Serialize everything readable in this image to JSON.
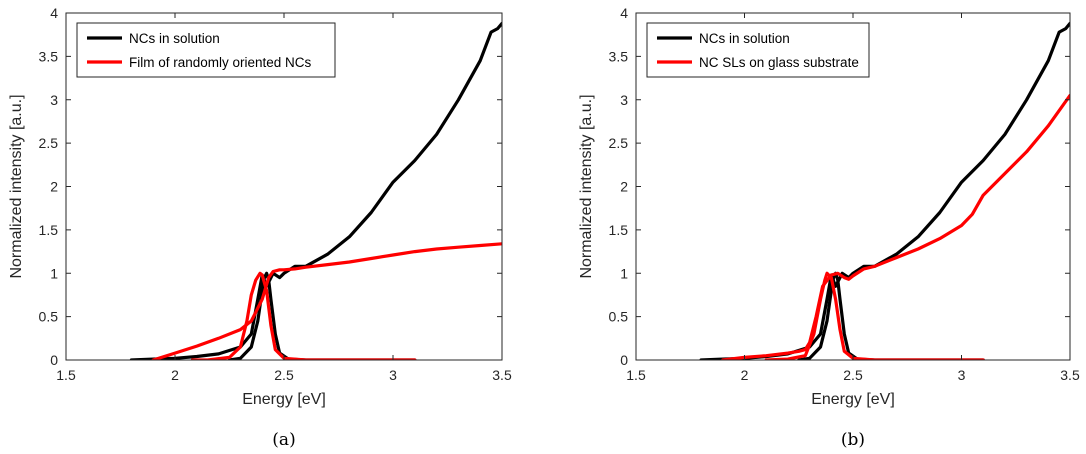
{
  "chart_data": [
    {
      "type": "line",
      "caption": "(a)",
      "xlabel": "Energy [eV]",
      "ylabel": "Normalized intensity [a.u.]",
      "xlim": [
        1.5,
        3.5
      ],
      "ylim": [
        0,
        4
      ],
      "xticks": [
        "1.5",
        "2",
        "2.5",
        "3",
        "3.5"
      ],
      "yticks": [
        "0",
        "0.5",
        "1",
        "1.5",
        "2",
        "2.5",
        "3",
        "3.5",
        "4"
      ],
      "grid": false,
      "legend_position": "top-left",
      "series": [
        {
          "name": "NCs in solution",
          "color": "#000000",
          "kind": "absorption",
          "x": [
            1.8,
            1.9,
            2.0,
            2.1,
            2.2,
            2.3,
            2.35,
            2.38,
            2.4,
            2.42,
            2.45,
            2.48,
            2.5,
            2.55,
            2.6,
            2.7,
            2.8,
            2.9,
            3.0,
            3.1,
            3.2,
            3.3,
            3.4,
            3.45,
            3.48,
            3.5
          ],
          "y": [
            0.0,
            0.01,
            0.02,
            0.04,
            0.07,
            0.15,
            0.3,
            0.7,
            0.98,
            0.85,
            1.0,
            0.95,
            1.0,
            1.08,
            1.08,
            1.22,
            1.42,
            1.7,
            2.05,
            2.3,
            2.6,
            3.0,
            3.45,
            3.78,
            3.82,
            3.88
          ]
        },
        {
          "name": "",
          "color": "#000000",
          "kind": "emission",
          "x": [
            2.25,
            2.3,
            2.35,
            2.38,
            2.4,
            2.41,
            2.42,
            2.43,
            2.44,
            2.46,
            2.48,
            2.52,
            2.6,
            2.8,
            3.0,
            3.1
          ],
          "y": [
            0.0,
            0.02,
            0.15,
            0.45,
            0.8,
            0.95,
            1.0,
            0.92,
            0.7,
            0.3,
            0.08,
            0.01,
            0.0,
            0.0,
            0.0,
            0.0
          ]
        },
        {
          "name": "Film of randomly oriented NCs",
          "color": "#ff0000",
          "kind": "absorption",
          "x": [
            1.9,
            2.0,
            2.1,
            2.2,
            2.3,
            2.35,
            2.4,
            2.43,
            2.45,
            2.48,
            2.5,
            2.55,
            2.6,
            2.7,
            2.8,
            2.9,
            3.0,
            3.1,
            3.2,
            3.3,
            3.4,
            3.5
          ],
          "y": [
            0.0,
            0.08,
            0.16,
            0.25,
            0.35,
            0.45,
            0.7,
            0.95,
            1.02,
            1.04,
            1.04,
            1.05,
            1.07,
            1.1,
            1.13,
            1.17,
            1.21,
            1.25,
            1.28,
            1.3,
            1.32,
            1.34
          ]
        },
        {
          "name": "",
          "color": "#ff0000",
          "kind": "emission",
          "x": [
            2.08,
            2.15,
            2.25,
            2.3,
            2.33,
            2.35,
            2.37,
            2.39,
            2.4,
            2.42,
            2.44,
            2.46,
            2.5,
            2.6,
            2.8,
            3.0,
            3.1
          ],
          "y": [
            0.0,
            0.0,
            0.03,
            0.15,
            0.45,
            0.75,
            0.92,
            1.0,
            0.98,
            0.8,
            0.4,
            0.12,
            0.02,
            0.0,
            0.0,
            0.0,
            0.0
          ]
        }
      ]
    },
    {
      "type": "line",
      "caption": "(b)",
      "xlabel": "Energy [eV]",
      "ylabel": "Normalized intensity [a.u.]",
      "xlim": [
        1.5,
        3.5
      ],
      "ylim": [
        0,
        4
      ],
      "xticks": [
        "1.5",
        "2",
        "2.5",
        "3",
        "3.5"
      ],
      "yticks": [
        "0",
        "0.5",
        "1",
        "1.5",
        "2",
        "2.5",
        "3",
        "3.5",
        "4"
      ],
      "grid": false,
      "legend_position": "top-left",
      "series": [
        {
          "name": "NCs in solution",
          "color": "#000000",
          "kind": "absorption",
          "x": [
            1.8,
            1.9,
            2.0,
            2.1,
            2.2,
            2.3,
            2.35,
            2.38,
            2.4,
            2.42,
            2.45,
            2.48,
            2.5,
            2.55,
            2.6,
            2.7,
            2.8,
            2.9,
            3.0,
            3.1,
            3.2,
            3.3,
            3.4,
            3.45,
            3.48,
            3.5
          ],
          "y": [
            0.0,
            0.01,
            0.02,
            0.04,
            0.07,
            0.15,
            0.3,
            0.7,
            0.98,
            0.85,
            1.0,
            0.95,
            1.0,
            1.08,
            1.08,
            1.22,
            1.42,
            1.7,
            2.05,
            2.3,
            2.6,
            3.0,
            3.45,
            3.78,
            3.82,
            3.88
          ]
        },
        {
          "name": "",
          "color": "#000000",
          "kind": "emission",
          "x": [
            2.25,
            2.3,
            2.35,
            2.38,
            2.4,
            2.41,
            2.42,
            2.43,
            2.44,
            2.46,
            2.48,
            2.52,
            2.6,
            2.8,
            3.0,
            3.1
          ],
          "y": [
            0.0,
            0.02,
            0.15,
            0.45,
            0.8,
            0.95,
            1.0,
            0.92,
            0.7,
            0.3,
            0.08,
            0.01,
            0.0,
            0.0,
            0.0,
            0.0
          ]
        },
        {
          "name": "NC SLs on glass substrate",
          "color": "#ff0000",
          "kind": "absorption",
          "x": [
            1.9,
            2.0,
            2.1,
            2.2,
            2.25,
            2.28,
            2.3,
            2.33,
            2.36,
            2.4,
            2.43,
            2.46,
            2.48,
            2.5,
            2.55,
            2.6,
            2.7,
            2.8,
            2.9,
            3.0,
            3.05,
            3.1,
            3.2,
            3.3,
            3.4,
            3.5
          ],
          "y": [
            0.0,
            0.03,
            0.05,
            0.08,
            0.1,
            0.12,
            0.2,
            0.5,
            0.85,
            0.98,
            1.0,
            0.95,
            0.93,
            0.97,
            1.05,
            1.08,
            1.18,
            1.28,
            1.4,
            1.55,
            1.68,
            1.9,
            2.15,
            2.4,
            2.7,
            3.05
          ]
        },
        {
          "name": "",
          "color": "#ff0000",
          "kind": "emission",
          "x": [
            2.1,
            2.2,
            2.28,
            2.32,
            2.35,
            2.37,
            2.38,
            2.4,
            2.42,
            2.44,
            2.46,
            2.5,
            2.6,
            2.8,
            3.0,
            3.1
          ],
          "y": [
            0.0,
            0.01,
            0.05,
            0.3,
            0.7,
            0.92,
            1.0,
            0.95,
            0.7,
            0.35,
            0.1,
            0.02,
            0.0,
            0.0,
            0.0,
            0.0
          ]
        }
      ]
    }
  ]
}
